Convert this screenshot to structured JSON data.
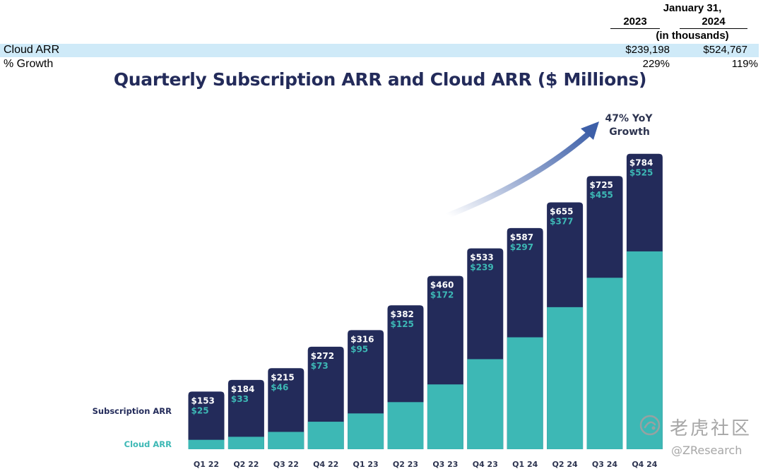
{
  "table": {
    "date_header": "January 31,",
    "years": [
      "2023",
      "2024"
    ],
    "units": "(in thousands)",
    "rows": [
      {
        "label": "Cloud ARR",
        "v2023": "$239,198",
        "v2024": "$524,767"
      },
      {
        "label": "% Growth",
        "v2023": "229%",
        "v2024": "119%"
      }
    ]
  },
  "colors": {
    "subscription": "#232b5a",
    "cloud": "#3db8b5",
    "arrow": "#3d5fa8",
    "table_highlight": "#cfeaf8"
  },
  "chart_data": {
    "type": "bar",
    "stacked": "overlay",
    "title": "Quarterly Subscription ARR and Cloud ARR ($ Millions)",
    "categories": [
      "Q1 22",
      "Q2 22",
      "Q3 22",
      "Q4 22",
      "Q1 23",
      "Q2 23",
      "Q3 23",
      "Q4 23",
      "Q1 24",
      "Q2 24",
      "Q3 24",
      "Q4 24"
    ],
    "series": [
      {
        "name": "Subscription ARR",
        "values": [
          153,
          184,
          215,
          272,
          316,
          382,
          460,
          533,
          587,
          655,
          725,
          784
        ],
        "labels": [
          "$153",
          "$184",
          "$215",
          "$272",
          "$316",
          "$382",
          "$460",
          "$533",
          "$587",
          "$655",
          "$725",
          "$784"
        ]
      },
      {
        "name": "Cloud ARR",
        "values": [
          25,
          33,
          46,
          73,
          95,
          125,
          172,
          239,
          297,
          377,
          455,
          525
        ],
        "labels": [
          "$25",
          "$33",
          "$46",
          "$73",
          "$95",
          "$125",
          "$172",
          "$239",
          "$297",
          "$377",
          "$455",
          "$525"
        ]
      }
    ],
    "ylim": [
      0,
      800
    ],
    "annotation": [
      "47% YoY",
      "Growth"
    ],
    "legend": "left",
    "xlabel": "",
    "ylabel": ""
  },
  "watermark": {
    "brand": "老虎社区",
    "handle": "@ZResearch"
  }
}
